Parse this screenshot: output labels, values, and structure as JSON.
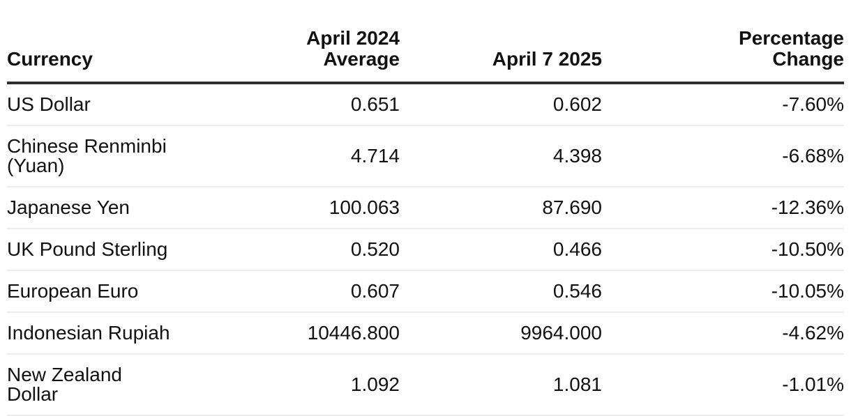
{
  "chart_data": {
    "type": "table",
    "columns": [
      "Currency",
      "April 2024 Average",
      "April 7 2025",
      "Percentage Change"
    ],
    "rows": [
      {
        "currency": "US Dollar",
        "april_2024_average": 0.651,
        "april_7_2025": 0.602,
        "percentage_change": "-7.60%"
      },
      {
        "currency": "Chinese Renminbi (Yuan)",
        "april_2024_average": 4.714,
        "april_7_2025": 4.398,
        "percentage_change": "-6.68%"
      },
      {
        "currency": "Japanese Yen",
        "april_2024_average": 100.063,
        "april_7_2025": 87.69,
        "percentage_change": "-12.36%"
      },
      {
        "currency": "UK Pound Sterling",
        "april_2024_average": 0.52,
        "april_7_2025": 0.466,
        "percentage_change": "-10.50%"
      },
      {
        "currency": "European Euro",
        "april_2024_average": 0.607,
        "april_7_2025": 0.546,
        "percentage_change": "-10.05%"
      },
      {
        "currency": "Indonesian Rupiah",
        "april_2024_average": 10446.8,
        "april_7_2025": 9964.0,
        "percentage_change": "-4.62%"
      },
      {
        "currency": "New Zealand Dollar",
        "april_2024_average": 1.092,
        "april_7_2025": 1.081,
        "percentage_change": "-1.01%"
      }
    ]
  },
  "display": {
    "headers": [
      "Currency",
      "April 2024\nAverage",
      "April 7 2025",
      "Percentage\nChange"
    ],
    "rows": [
      {
        "cells": [
          "US Dollar",
          "0.651",
          "0.602",
          "-7.60%"
        ]
      },
      {
        "cells": [
          "Chinese Renminbi\n(Yuan)",
          "4.714",
          "4.398",
          "-6.68%"
        ]
      },
      {
        "cells": [
          "Japanese Yen",
          "100.063",
          "87.690",
          "-12.36%"
        ]
      },
      {
        "cells": [
          "UK Pound Sterling",
          "0.520",
          "0.466",
          "-10.50%"
        ]
      },
      {
        "cells": [
          "European Euro",
          "0.607",
          "0.546",
          "-10.05%"
        ]
      },
      {
        "cells": [
          "Indonesian Rupiah",
          "10446.800",
          "9964.000",
          "-4.62%"
        ]
      },
      {
        "cells": [
          "New Zealand\nDollar",
          "1.092",
          "1.081",
          "-1.01%"
        ]
      }
    ]
  },
  "colors": {
    "background": "#ffffff",
    "text": "#111111",
    "header_rule": "#2e2e2e",
    "row_rule": "#ededed"
  }
}
